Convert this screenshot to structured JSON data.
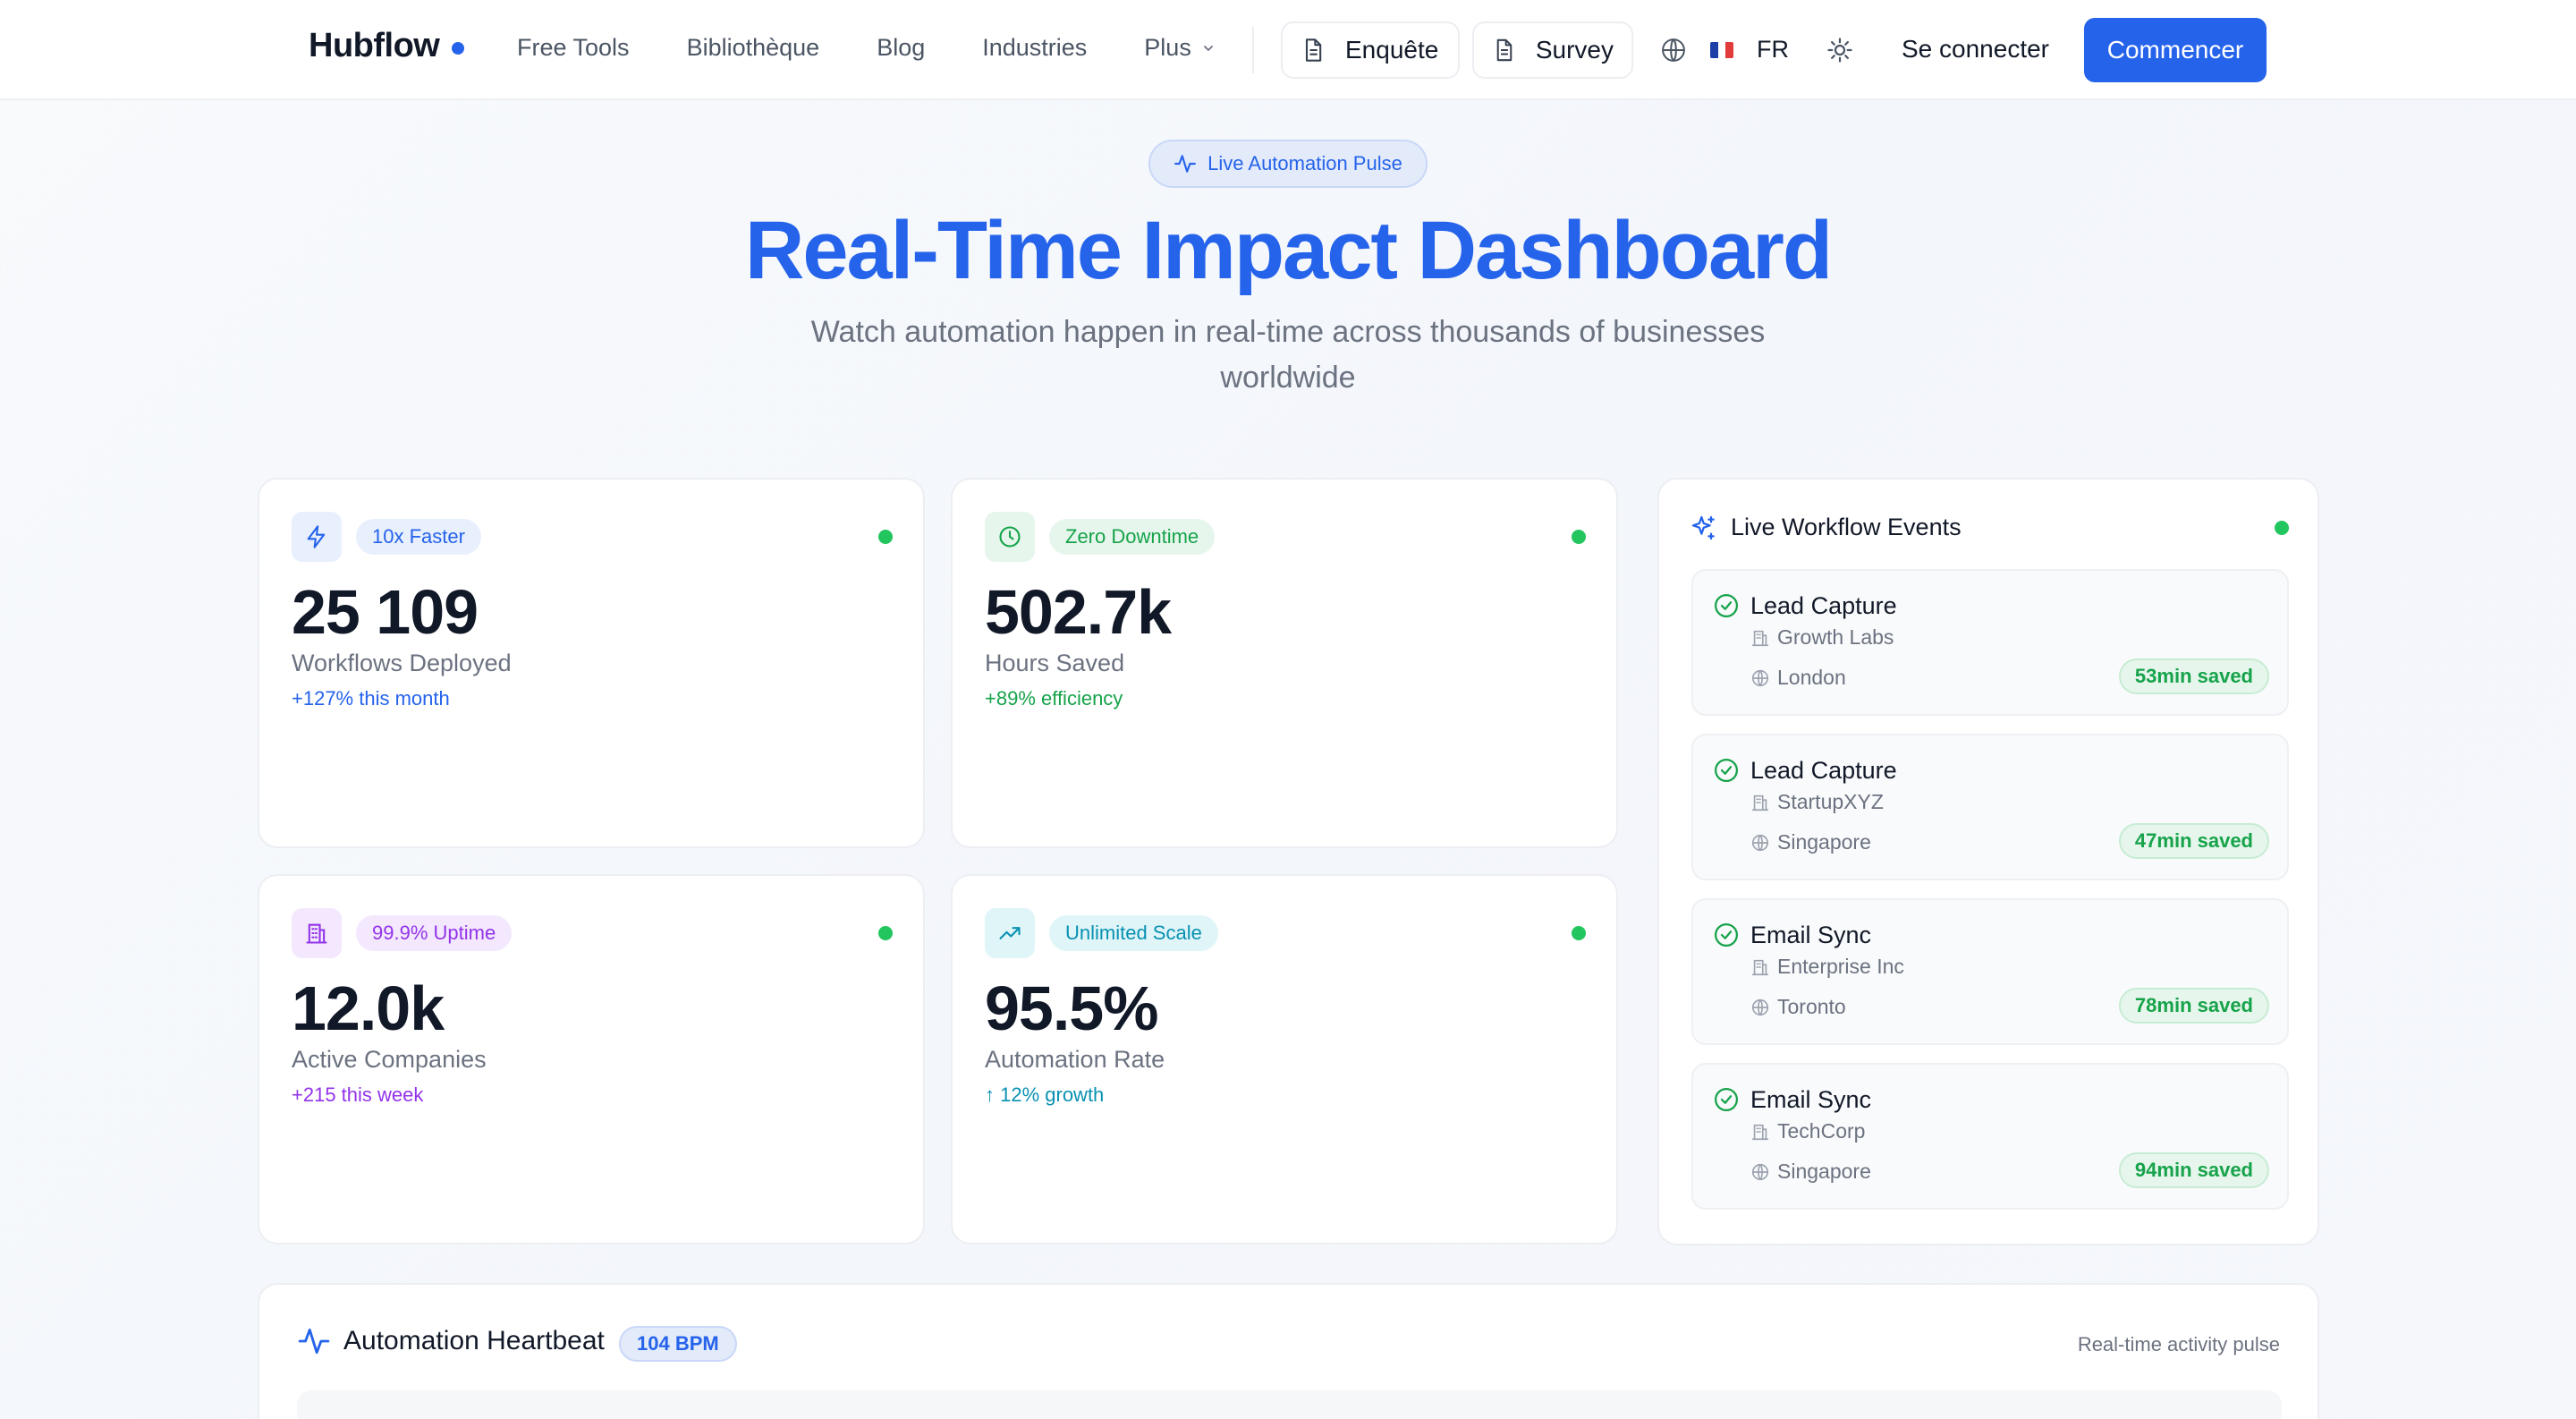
{
  "nav": {
    "brand": "Hubflow",
    "links": [
      "Free Tools",
      "Bibliothèque",
      "Blog",
      "Industries",
      "Plus"
    ],
    "enquete": "Enquête",
    "survey": "Survey",
    "lang": "FR",
    "login": "Se connecter",
    "cta": "Commencer"
  },
  "hero": {
    "pill": "Live Automation Pulse",
    "title": "Real-Time Impact Dashboard",
    "subtitle": "Watch automation happen in real-time across thousands of businesses worldwide"
  },
  "stats": [
    {
      "badge": "10x Faster",
      "value": "25 109",
      "label": "Workflows Deployed",
      "delta": "+127% this month",
      "icon": "lightning-icon",
      "color": "#2563eb"
    },
    {
      "badge": "Zero Downtime",
      "value": "502.7k",
      "label": "Hours Saved",
      "delta": "+89% efficiency",
      "icon": "clock-icon",
      "color": "#16a34a"
    },
    {
      "badge": "99.9% Uptime",
      "value": "12.0k",
      "label": "Active Companies",
      "delta": "+215 this week",
      "icon": "building-icon",
      "color": "#9333ea"
    },
    {
      "badge": "Unlimited Scale",
      "value": "95.5%",
      "label": "Automation Rate",
      "delta": "↑ 12% growth",
      "icon": "trending-up-icon",
      "color": "#0891b2"
    }
  ],
  "events": {
    "title": "Live Workflow Events",
    "items": [
      {
        "name": "Lead Capture",
        "company": "Growth Labs",
        "city": "London",
        "saved": "53min saved"
      },
      {
        "name": "Lead Capture",
        "company": "StartupXYZ",
        "city": "Singapore",
        "saved": "47min saved"
      },
      {
        "name": "Email Sync",
        "company": "Enterprise Inc",
        "city": "Toronto",
        "saved": "78min saved"
      },
      {
        "name": "Email Sync",
        "company": "TechCorp",
        "city": "Singapore",
        "saved": "94min saved"
      }
    ]
  },
  "heartbeat": {
    "title": "Automation Heartbeat",
    "bpm": "104 BPM",
    "note": "Real-time activity pulse"
  },
  "colors": {
    "accent": "#2563eb",
    "live": "#22c55e",
    "success": "#16a34a"
  }
}
